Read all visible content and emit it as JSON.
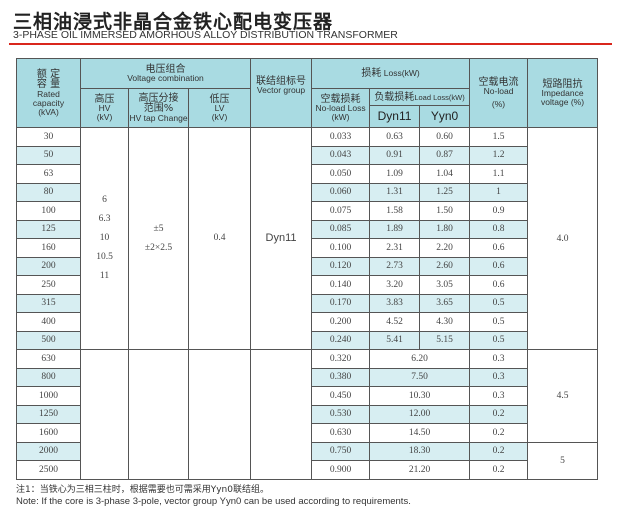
{
  "title": "三相油浸式非晶合金铁心配电变压器",
  "subtitle": "3-PHASE OIL IMMERSED AMORHOUS ALLOY DISTRIBUTION TRANSFORMER",
  "header": {
    "rated_zh": "额 定\n容 量",
    "rated_en": "Rated capacity (kVA)",
    "voltage_zh": "电压组合",
    "voltage_en": "Voltage combination",
    "hv_zh": "高压",
    "hv_en": "HV",
    "hv_unit": "(kV)",
    "tap_zh": "高压分接\n范围%",
    "tap_en": "HV tap Change",
    "lv_zh": "低压",
    "lv_en": "LV",
    "lv_unit": "(kV)",
    "vector_zh": "联结组标号",
    "vector_en": "Vector group",
    "loss_zh": "损耗",
    "loss_en": "Loss(kW)",
    "noload_loss_zh": "空载损耗",
    "noload_loss_en": "No-load Loss (kW)",
    "load_loss_zh": "负载损耗",
    "load_loss_en": "Load Loss(kW)",
    "dyn11": "Dyn11",
    "yyn0": "Yyn0",
    "noload_cur_zh": "空载电流",
    "noload_cur_en": "No-load",
    "noload_cur_unit": "(%)",
    "imp_zh": "短路阻抗",
    "imp_en": "Impedance voltage (%)"
  },
  "merged": {
    "hv": "6\n6.3\n10\n10.5\n11",
    "tap": "±5\n±2×2.5",
    "lv": "0.4",
    "vector": "Dyn11"
  },
  "impedance": [
    {
      "value": "4.0",
      "rows": 12
    },
    {
      "value": "4.5",
      "rows": 5
    },
    {
      "value": "5",
      "rows": 2
    }
  ],
  "rows": [
    [
      "30",
      "0.033",
      "0.63",
      "0.60",
      "1.5"
    ],
    [
      "50",
      "0.043",
      "0.91",
      "0.87",
      "1.2"
    ],
    [
      "63",
      "0.050",
      "1.09",
      "1.04",
      "1.1"
    ],
    [
      "80",
      "0.060",
      "1.31",
      "1.25",
      "1"
    ],
    [
      "100",
      "0.075",
      "1.58",
      "1.50",
      "0.9"
    ],
    [
      "125",
      "0.085",
      "1.89",
      "1.80",
      "0.8"
    ],
    [
      "160",
      "0.100",
      "2.31",
      "2.20",
      "0.6"
    ],
    [
      "200",
      "0.120",
      "2.73",
      "2.60",
      "0.6"
    ],
    [
      "250",
      "0.140",
      "3.20",
      "3.05",
      "0.6"
    ],
    [
      "315",
      "0.170",
      "3.83",
      "3.65",
      "0.5"
    ],
    [
      "400",
      "0.200",
      "4.52",
      "4.30",
      "0.5"
    ],
    [
      "500",
      "0.240",
      "5.41",
      "5.15",
      "0.5"
    ],
    [
      "630",
      "0.320",
      "6.20",
      null,
      "0.3"
    ],
    [
      "800",
      "0.380",
      "7.50",
      null,
      "0.3"
    ],
    [
      "1000",
      "0.450",
      "10.30",
      null,
      "0.3"
    ],
    [
      "1250",
      "0.530",
      "12.00",
      null,
      "0.2"
    ],
    [
      "1600",
      "0.630",
      "14.50",
      null,
      "0.2"
    ],
    [
      "2000",
      "0.750",
      "18.30",
      null,
      "0.2"
    ],
    [
      "2500",
      "0.900",
      "21.20",
      null,
      "0.2"
    ]
  ],
  "notes": [
    "注1：当铁心为三相三柱时，根据需要也可需采用Yyn0联结组。",
    "Note: If the core is 3-phase 3-pole, vector group Yyn0 can be used according to requirements."
  ]
}
